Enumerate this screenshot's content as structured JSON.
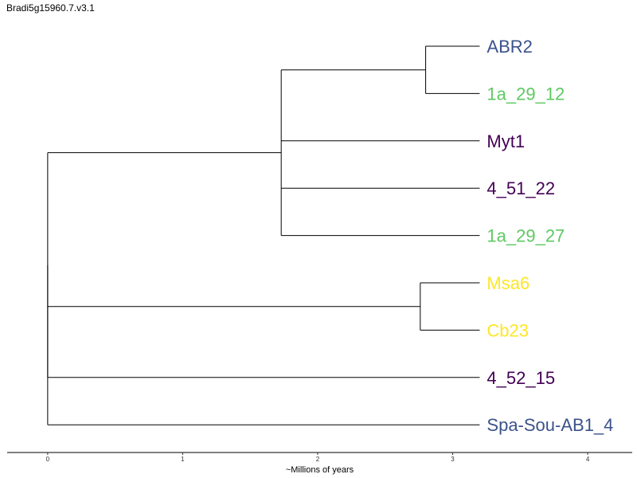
{
  "title": "Bradi5g15960.7.v3.1",
  "axis": {
    "title": "~Millions of years",
    "ticks": [
      0,
      1,
      2,
      3,
      4
    ],
    "range": [
      -0.3,
      4.33
    ]
  },
  "colors": {
    "purple": "#440154",
    "blue": "#3b528b",
    "green": "#5ec962",
    "yellow": "#fde725",
    "branch": "#000000"
  },
  "tree": {
    "height": 0,
    "children": [
      {
        "height": 0,
        "children": [
          {
            "height": 1.73,
            "children": [
              {
                "height": 2.8,
                "children": [
                  {
                    "name": "ABR2",
                    "color": "blue"
                  },
                  {
                    "name": "1a_29_12",
                    "color": "green"
                  }
                ]
              },
              {
                "name": "Myt1",
                "color": "purple"
              },
              {
                "name": "4_51_22",
                "color": "purple"
              },
              {
                "name": "1a_29_27",
                "color": "green"
              }
            ]
          },
          {
            "height": 2.76,
            "children": [
              {
                "name": "Msa6",
                "color": "yellow"
              },
              {
                "name": "Cb23",
                "color": "yellow"
              }
            ]
          },
          {
            "name": "4_52_15",
            "color": "purple"
          }
        ]
      },
      {
        "name": "Spa-Sou-AB1_4",
        "color": "blue"
      }
    ]
  },
  "leaf_tip": 3.2
}
